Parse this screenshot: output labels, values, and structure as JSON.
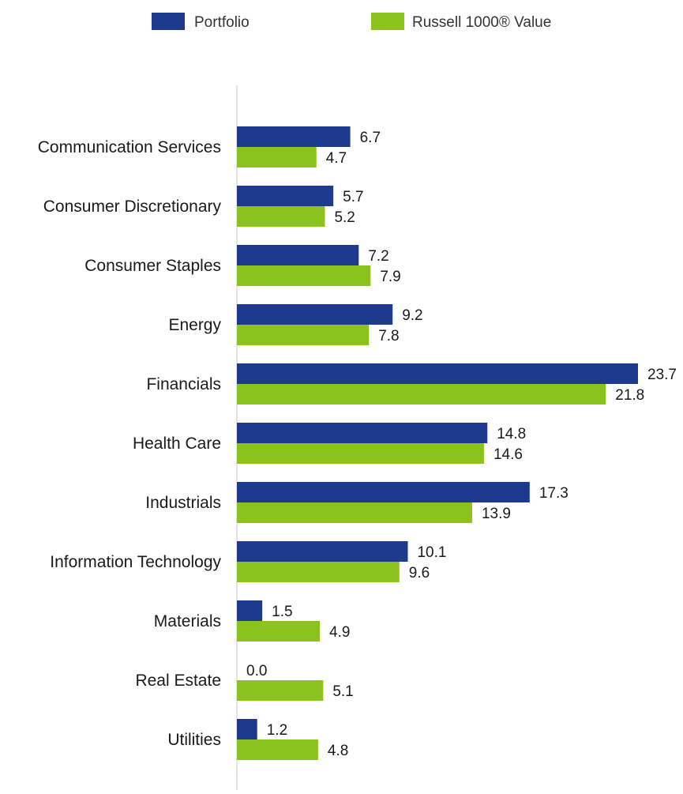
{
  "chart_data": {
    "type": "bar",
    "orientation": "horizontal",
    "title": "",
    "xlabel": "",
    "ylabel": "",
    "categories": [
      "Communication Services",
      "Consumer Discretionary",
      "Consumer Staples",
      "Energy",
      "Financials",
      "Health Care",
      "Industrials",
      "Information Technology",
      "Materials",
      "Real Estate",
      "Utilities"
    ],
    "series": [
      {
        "name": "Portfolio",
        "color": "#1e3a8f",
        "values": [
          6.7,
          5.7,
          7.2,
          9.2,
          23.7,
          14.8,
          17.3,
          10.1,
          1.5,
          0.0,
          1.2
        ],
        "labels": [
          "6.7",
          "5.7",
          "7.2",
          "9.2",
          "23.7",
          "14.8",
          "17.3",
          "10.1",
          "1.5",
          "0.0",
          "1.2"
        ]
      },
      {
        "name": "Russell 1000® Value",
        "color": "#8cc21e",
        "values": [
          4.7,
          5.2,
          7.9,
          7.8,
          21.8,
          14.6,
          13.9,
          9.6,
          4.9,
          5.1,
          4.8
        ],
        "labels": [
          "4.7",
          "5.2",
          "7.9",
          "7.8",
          "21.8",
          "14.6",
          "13.9",
          "9.6",
          "4.9",
          "5.1",
          "4.8"
        ]
      }
    ],
    "xlim": [
      0,
      25
    ],
    "grid": false,
    "legend_position": "top"
  }
}
